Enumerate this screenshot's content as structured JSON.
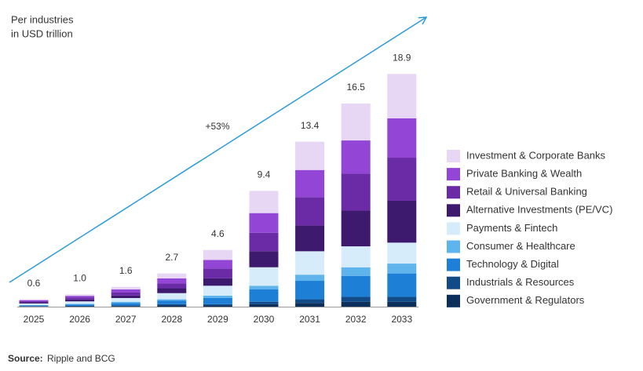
{
  "chart_data": {
    "type": "stacked_bar",
    "subtitle": [
      "Per industries",
      "in USD trillion"
    ],
    "annotation": "+53%",
    "source": {
      "label": "Source:",
      "text": "Ripple and BCG"
    },
    "categories": [
      "2025",
      "2026",
      "2027",
      "2028",
      "2029",
      "2030",
      "2031",
      "2032",
      "2033"
    ],
    "totals": [
      0.6,
      1.0,
      1.6,
      2.7,
      4.6,
      9.4,
      13.4,
      16.5,
      18.9
    ],
    "total_labels": [
      "0.6",
      "1.0",
      "1.6",
      "2.7",
      "4.6",
      "9.4",
      "13.4",
      "16.5",
      "18.9"
    ],
    "series": [
      {
        "name": "Government & Regulators",
        "color": "#0b2f5a",
        "values": [
          0.02,
          0.03,
          0.05,
          0.1,
          0.1,
          0.2,
          0.3,
          0.4,
          0.4
        ]
      },
      {
        "name": "Industrials & Resources",
        "color": "#114a87",
        "values": [
          0.02,
          0.03,
          0.05,
          0.1,
          0.1,
          0.2,
          0.3,
          0.4,
          0.4
        ]
      },
      {
        "name": "Technology & Digital",
        "color": "#1e7fd6",
        "values": [
          0.07,
          0.12,
          0.2,
          0.3,
          0.5,
          1.0,
          1.5,
          1.7,
          1.9
        ]
      },
      {
        "name": "Consumer & Healthcare",
        "color": "#5fb4ec",
        "values": [
          0.03,
          0.05,
          0.1,
          0.1,
          0.2,
          0.3,
          0.5,
          0.7,
          0.8
        ]
      },
      {
        "name": "Payments & Fintech",
        "color": "#d6ecfb",
        "values": [
          0.12,
          0.2,
          0.3,
          0.5,
          0.8,
          1.5,
          1.9,
          1.7,
          1.7
        ]
      },
      {
        "name": "Alternative Investments (PE/VC)",
        "color": "#3e1a6e",
        "values": [
          0.09,
          0.15,
          0.2,
          0.4,
          0.6,
          1.3,
          2.1,
          2.9,
          3.4
        ]
      },
      {
        "name": "Retail & Universal Banking",
        "color": "#6b2aa6",
        "values": [
          0.09,
          0.15,
          0.25,
          0.4,
          0.8,
          1.5,
          2.3,
          3.0,
          3.5
        ]
      },
      {
        "name": "Private Banking & Wealth",
        "color": "#9346d6",
        "values": [
          0.09,
          0.15,
          0.25,
          0.4,
          0.7,
          1.6,
          2.2,
          2.7,
          3.2
        ]
      },
      {
        "name": "Investment & Corporate Banks",
        "color": "#e8d6f5",
        "values": [
          0.07,
          0.12,
          0.2,
          0.4,
          0.8,
          1.8,
          2.3,
          3.0,
          3.6
        ]
      }
    ]
  }
}
